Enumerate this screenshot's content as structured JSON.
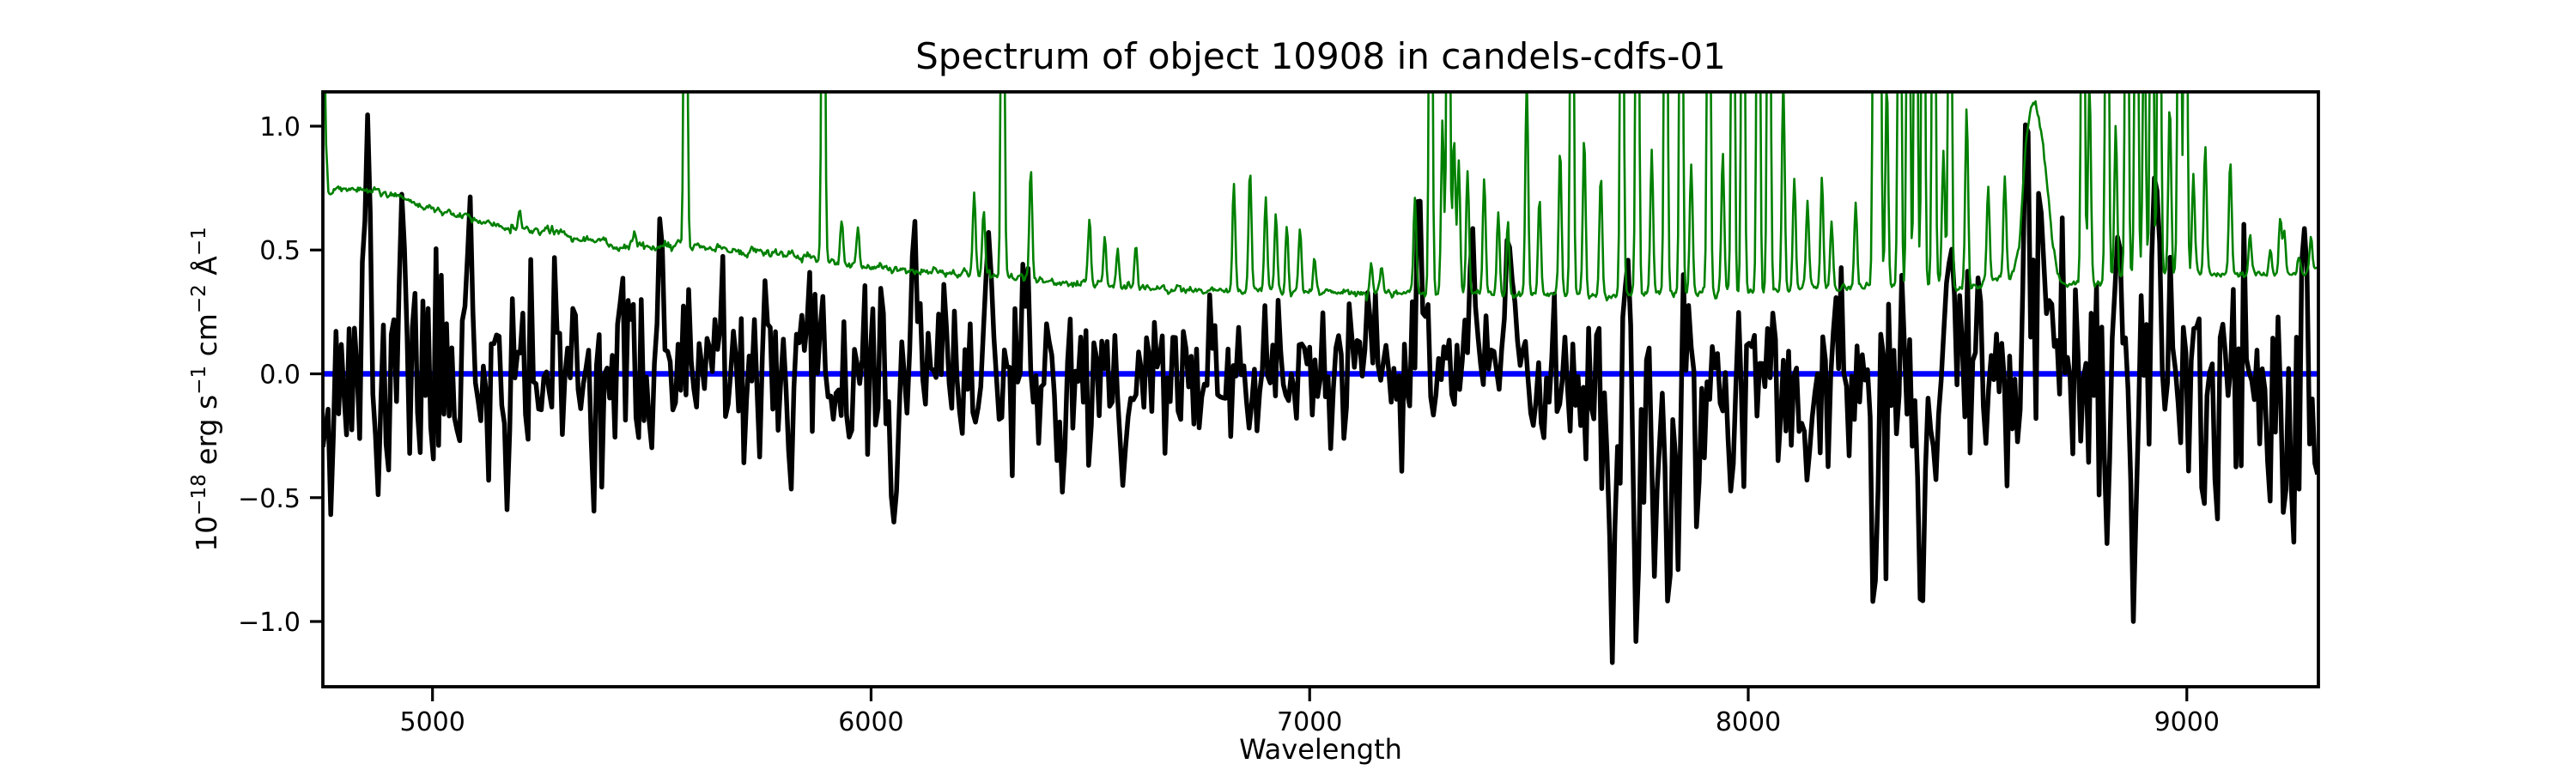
{
  "figure": {
    "background": "#ffffff",
    "ylabel_segments": [
      {
        "text": "10"
      },
      {
        "text": "−18",
        "sup": true
      },
      {
        "text": " erg s"
      },
      {
        "text": "−1",
        "sup": true
      },
      {
        "text": " cm"
      },
      {
        "text": "−2",
        "sup": true
      },
      {
        "text": " Å"
      },
      {
        "text": "−1",
        "sup": true
      }
    ]
  },
  "chart_data": {
    "type": "line",
    "title": "Spectrum of object 10908 in candels-cdfs-01",
    "xlabel": "Wavelength",
    "ylabel": "10⁻¹⁸ erg s⁻¹ cm⁻² Å⁻¹",
    "xlim": [
      4750,
      9300
    ],
    "ylim": [
      -1.2634,
      1.1386
    ],
    "grid": false,
    "legend": "none",
    "x_ticks": {
      "values": [
        5000,
        6000,
        7000,
        8000,
        9000
      ],
      "labels": [
        "5000",
        "6000",
        "7000",
        "8000",
        "9000"
      ]
    },
    "y_ticks": {
      "values": [
        1.0,
        0.5,
        0.0,
        -0.5,
        -1.0
      ],
      "labels": [
        "1.0",
        "0.5",
        "0.0",
        "−0.5",
        "−1.0"
      ]
    },
    "series": [
      {
        "name": "zero-line",
        "role": "axhline",
        "y": 0.0,
        "color": "#0000ff",
        "linewidth": 6.5
      },
      {
        "name": "object-flux",
        "role": "flux",
        "color": "#000000",
        "linewidth": 5.5,
        "seed": 11,
        "step": 6,
        "spike_sigma": 6,
        "neg_skew_start": 7400,
        "neg_skew": 1.22,
        "noise_envelope": [
          [
            4750,
            0.26
          ],
          [
            4900,
            0.24
          ],
          [
            5100,
            0.21
          ],
          [
            5300,
            0.2
          ],
          [
            5500,
            0.185
          ],
          [
            5700,
            0.175
          ],
          [
            5900,
            0.165
          ],
          [
            6100,
            0.16
          ],
          [
            6300,
            0.155
          ],
          [
            6500,
            0.145
          ],
          [
            6700,
            0.14
          ],
          [
            6900,
            0.14
          ],
          [
            7100,
            0.15
          ],
          [
            7300,
            0.165
          ],
          [
            7500,
            0.17
          ],
          [
            7700,
            0.185
          ],
          [
            7900,
            0.19
          ],
          [
            8100,
            0.19
          ],
          [
            8300,
            0.195
          ],
          [
            8500,
            0.205
          ],
          [
            8700,
            0.21
          ],
          [
            8900,
            0.225
          ],
          [
            9100,
            0.235
          ],
          [
            9300,
            0.25
          ]
        ],
        "spikes": [
          [
            4853,
            1.0
          ],
          [
            4876,
            -0.5
          ],
          [
            4931,
            0.76
          ],
          [
            5084,
            0.72
          ],
          [
            5170,
            -0.5
          ],
          [
            5519,
            0.62
          ],
          [
            5816,
            -0.5
          ],
          [
            6051,
            -0.62
          ],
          [
            6100,
            0.55
          ],
          [
            6266,
            0.58
          ],
          [
            6437,
            -0.45
          ],
          [
            6574,
            -0.45
          ],
          [
            7249,
            0.68
          ],
          [
            7371,
            0.6
          ],
          [
            7452,
            0.58
          ],
          [
            7690,
            -1.15
          ],
          [
            7724,
            0.52
          ],
          [
            7745,
            -1.02
          ],
          [
            7786,
            -0.85
          ],
          [
            7818,
            -0.87
          ],
          [
            7840,
            -0.77
          ],
          [
            7884,
            -0.55
          ],
          [
            7989,
            -0.47
          ],
          [
            8135,
            -0.49
          ],
          [
            8286,
            -0.93
          ],
          [
            8395,
            -0.91
          ],
          [
            8429,
            -0.45
          ],
          [
            8462,
            0.57
          ],
          [
            8635,
            1.01
          ],
          [
            8665,
            0.69
          ],
          [
            8818,
            -0.67
          ],
          [
            8843,
            0.66
          ],
          [
            8879,
            -0.98
          ],
          [
            8930,
            0.75
          ],
          [
            9270,
            0.55
          ],
          [
            9297,
            -0.45
          ]
        ]
      },
      {
        "name": "sky-noise-spectrum",
        "role": "sky",
        "color": "#008000",
        "linewidth": 2.6,
        "seed": 5,
        "step": 2.5,
        "line_sigma": 3.2,
        "wiggle_amp": 0.016,
        "continuum": [
          [
            4750,
            2.2
          ],
          [
            4756,
            1.0
          ],
          [
            4763,
            0.72
          ],
          [
            4775,
            0.735
          ],
          [
            4800,
            0.74
          ],
          [
            4870,
            0.74
          ],
          [
            4920,
            0.715
          ],
          [
            4970,
            0.685
          ],
          [
            5030,
            0.655
          ],
          [
            5090,
            0.625
          ],
          [
            5150,
            0.6
          ],
          [
            5210,
            0.585
          ],
          [
            5270,
            0.575
          ],
          [
            5330,
            0.555
          ],
          [
            5390,
            0.53
          ],
          [
            5450,
            0.515
          ],
          [
            5510,
            0.515
          ],
          [
            5560,
            0.52
          ],
          [
            5620,
            0.51
          ],
          [
            5680,
            0.5
          ],
          [
            5740,
            0.495
          ],
          [
            5800,
            0.48
          ],
          [
            5860,
            0.465
          ],
          [
            5920,
            0.445
          ],
          [
            5980,
            0.435
          ],
          [
            6040,
            0.425
          ],
          [
            6100,
            0.415
          ],
          [
            6160,
            0.41
          ],
          [
            6220,
            0.4
          ],
          [
            6280,
            0.395
          ],
          [
            6340,
            0.39
          ],
          [
            6400,
            0.38
          ],
          [
            6460,
            0.37
          ],
          [
            6520,
            0.36
          ],
          [
            6580,
            0.35
          ],
          [
            6640,
            0.342
          ],
          [
            6720,
            0.338
          ],
          [
            6800,
            0.335
          ],
          [
            6900,
            0.332
          ],
          [
            7000,
            0.33
          ],
          [
            7100,
            0.328
          ],
          [
            7200,
            0.325
          ],
          [
            7300,
            0.322
          ],
          [
            7400,
            0.32
          ],
          [
            7500,
            0.318
          ],
          [
            7600,
            0.315
          ],
          [
            7700,
            0.315
          ],
          [
            7800,
            0.32
          ],
          [
            7900,
            0.327
          ],
          [
            8000,
            0.333
          ],
          [
            8100,
            0.34
          ],
          [
            8200,
            0.345
          ],
          [
            8300,
            0.35
          ],
          [
            8400,
            0.35
          ],
          [
            8450,
            0.352
          ],
          [
            8520,
            0.36
          ],
          [
            8575,
            0.38
          ],
          [
            8600,
            0.4
          ],
          [
            8618,
            0.5
          ],
          [
            8632,
            0.92
          ],
          [
            8645,
            1.08
          ],
          [
            8655,
            1.1
          ],
          [
            8668,
            0.97
          ],
          [
            8680,
            0.8
          ],
          [
            8692,
            0.55
          ],
          [
            8705,
            0.4
          ],
          [
            8715,
            0.36
          ],
          [
            8760,
            0.365
          ],
          [
            8820,
            0.375
          ],
          [
            8880,
            0.39
          ],
          [
            8940,
            0.4
          ],
          [
            9000,
            0.405
          ],
          [
            9060,
            0.4
          ],
          [
            9120,
            0.4
          ],
          [
            9180,
            0.395
          ],
          [
            9240,
            0.4
          ],
          [
            9280,
            0.41
          ],
          [
            9300,
            0.44
          ]
        ],
        "lines": [
          [
            5199,
            0.66
          ],
          [
            5461,
            0.57
          ],
          [
            5577,
            3
          ],
          [
            5891,
            3
          ],
          [
            5933,
            0.63
          ],
          [
            5970,
            0.58
          ],
          [
            6235,
            0.73
          ],
          [
            6257,
            0.66
          ],
          [
            6300,
            3
          ],
          [
            6364,
            0.82
          ],
          [
            6498,
            0.63
          ],
          [
            6533,
            0.56
          ],
          [
            6562,
            0.5
          ],
          [
            6604,
            0.53
          ],
          [
            6827,
            0.75
          ],
          [
            6864,
            0.83
          ],
          [
            6900,
            0.71
          ],
          [
            6923,
            0.64
          ],
          [
            6948,
            0.61
          ],
          [
            6978,
            0.58
          ],
          [
            7011,
            0.47
          ],
          [
            7140,
            0.45
          ],
          [
            7164,
            0.43
          ],
          [
            7240,
            0.71
          ],
          [
            7276,
            3
          ],
          [
            7303,
            1.02
          ],
          [
            7316,
            3
          ],
          [
            7329,
            0.96
          ],
          [
            7340,
            0.86
          ],
          [
            7360,
            0.81
          ],
          [
            7398,
            0.79
          ],
          [
            7430,
            0.66
          ],
          [
            7452,
            0.61
          ],
          [
            7495,
            1.2
          ],
          [
            7524,
            0.7
          ],
          [
            7571,
            0.92
          ],
          [
            7598,
            3
          ],
          [
            7626,
            0.96
          ],
          [
            7664,
            0.8
          ],
          [
            7712,
            3
          ],
          [
            7747,
            3
          ],
          [
            7780,
            0.9
          ],
          [
            7812,
            3
          ],
          [
            7847,
            3
          ],
          [
            7870,
            0.85
          ],
          [
            7910,
            3
          ],
          [
            7942,
            0.9
          ],
          [
            7965,
            3
          ],
          [
            7988,
            3
          ],
          [
            8023,
            3
          ],
          [
            8047,
            3
          ],
          [
            8080,
            1.2
          ],
          [
            8105,
            0.8
          ],
          [
            8135,
            0.7
          ],
          [
            8168,
            0.78
          ],
          [
            8190,
            0.62
          ],
          [
            8245,
            0.7
          ],
          [
            8288,
            3
          ],
          [
            8299,
            3
          ],
          [
            8316,
            1.2
          ],
          [
            8345,
            3
          ],
          [
            8365,
            3
          ],
          [
            8382,
            3
          ],
          [
            8399,
            3
          ],
          [
            8423,
            3
          ],
          [
            8445,
            0.89
          ],
          [
            8460,
            3
          ],
          [
            8498,
            1.09
          ],
          [
            8547,
            0.75
          ],
          [
            8585,
            0.78
          ],
          [
            8763,
            3
          ],
          [
            8778,
            1.2
          ],
          [
            8818,
            3
          ],
          [
            8838,
            1.0
          ],
          [
            8863,
            3
          ],
          [
            8885,
            3
          ],
          [
            8903,
            1.6
          ],
          [
            8920,
            3
          ],
          [
            8937,
            3
          ],
          [
            8961,
            1.1
          ],
          [
            8983,
            3
          ],
          [
            8997,
            3
          ],
          [
            9015,
            0.8
          ],
          [
            9042,
            0.93
          ],
          [
            9099,
            0.86
          ],
          [
            9144,
            0.56
          ],
          [
            9190,
            0.5
          ],
          [
            9213,
            0.63
          ],
          [
            9222,
            0.56
          ],
          [
            9255,
            0.48
          ],
          [
            9283,
            0.55
          ]
        ]
      }
    ]
  }
}
